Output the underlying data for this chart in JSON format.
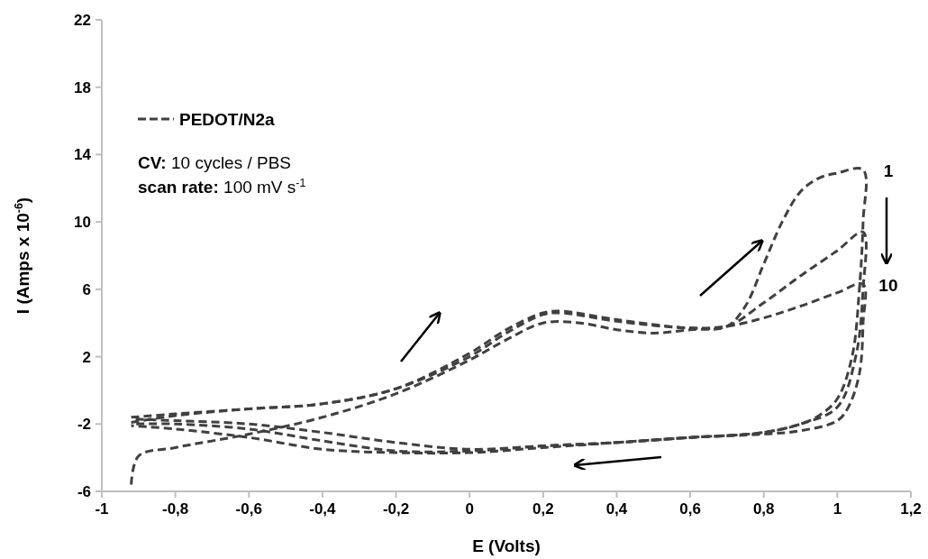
{
  "chart_data": {
    "type": "line",
    "xlabel": "E (Volts)",
    "ylabel": "I (Amps x 10$^{-6}$)",
    "xlim": [
      -1,
      1.2
    ],
    "xticks": [
      -1,
      {
        "value": -0.8,
        "label": "-0,8"
      },
      {
        "value": -0.6,
        "label": "-0,6"
      },
      {
        "value": -0.4,
        "label": "-0,4"
      },
      {
        "value": -0.2,
        "label": "-0,2"
      },
      0,
      {
        "value": 0.2,
        "label": "0,2"
      },
      {
        "value": 0.4,
        "label": "0,4"
      },
      {
        "value": 0.6,
        "label": "0,6"
      },
      {
        "value": 0.8,
        "label": "0,8"
      },
      1,
      {
        "value": 1.2,
        "label": "1,2"
      }
    ],
    "ylim": [
      -6,
      22
    ],
    "yticks": [
      -6,
      -2,
      2,
      6,
      10,
      14,
      18,
      22
    ],
    "grid": false,
    "legend": "top left",
    "line_style": "dashed",
    "marker": "none",
    "series": [
      {
        "name": "PEDOT/N2a",
        "color": "#404040",
        "x": [
          -0.92,
          -0.9,
          -0.8,
          -0.6,
          -0.4,
          -0.2,
          0,
          0.1,
          0.2,
          0.3,
          0.4,
          0.5,
          0.6,
          0.7,
          0.75,
          0.8,
          0.85,
          0.9,
          0.95,
          1.0,
          1.07,
          1.07,
          1.06,
          1.04,
          1.0,
          0.95,
          0.9,
          0.8,
          0.6,
          0.4,
          0.2,
          0,
          -0.2,
          -0.4,
          -0.6,
          -0.8,
          -0.92
        ],
        "values": [
          -5.6,
          -3.9,
          -3.4,
          -2.6,
          -1.6,
          -0.2,
          1.8,
          3.0,
          4.0,
          4.0,
          3.6,
          3.4,
          3.6,
          3.8,
          5,
          7.5,
          10,
          11.8,
          12.6,
          12.9,
          13.1,
          10,
          6,
          2,
          -0.5,
          -1.5,
          -2.0,
          -2.5,
          -2.8,
          -3.1,
          -3.4,
          -3.7,
          -3.7,
          -3.5,
          -2.8,
          -2.3,
          -2.1
        ]
      },
      {
        "color": "#404040",
        "x": [
          -0.92,
          -0.8,
          -0.6,
          -0.4,
          -0.2,
          0,
          0.1,
          0.2,
          0.25,
          0.4,
          0.6,
          0.7,
          0.8,
          0.9,
          1.0,
          1.07,
          1.07,
          1.05,
          1.0,
          0.9,
          0.8,
          0.6,
          0.4,
          0.2,
          0,
          -0.2,
          -0.4,
          -0.6,
          -0.8,
          -0.92
        ],
        "values": [
          -1.9,
          -1.5,
          -1.1,
          -0.8,
          0.1,
          2.0,
          3.4,
          4.5,
          4.6,
          4.1,
          3.7,
          3.8,
          5.2,
          6.8,
          8.3,
          9.4,
          6,
          2,
          -1,
          -2.0,
          -2.5,
          -2.8,
          -3.1,
          -3.3,
          -3.6,
          -3.6,
          -3.0,
          -2.3,
          -2.0,
          -2.0
        ]
      },
      {
        "color": "#404040",
        "x": [
          -0.92,
          -0.8,
          -0.6,
          -0.4,
          -0.2,
          0,
          0.1,
          0.2,
          0.25,
          0.4,
          0.6,
          0.7,
          0.8,
          0.9,
          1.0,
          1.07,
          1.07,
          1.06,
          1.03,
          1.0,
          0.9,
          0.8,
          0.6,
          0.4,
          0.2,
          0,
          -0.2,
          -0.4,
          -0.6,
          -0.8,
          -0.92
        ],
        "values": [
          -1.6,
          -1.4,
          -1.1,
          -0.8,
          0.1,
          2.2,
          3.6,
          4.6,
          4.7,
          4.2,
          3.7,
          3.8,
          4.3,
          5.0,
          5.8,
          6.3,
          4,
          1,
          -1,
          -1.8,
          -2.4,
          -2.6,
          -2.8,
          -3.1,
          -3.3,
          -3.5,
          -3.1,
          -2.5,
          -2.0,
          -1.8,
          -1.7
        ]
      }
    ],
    "annotations": [
      "CV: 10 cycles / PBS",
      "scan rate: 100 mV s$^{-1}$",
      {
        "text": "1",
        "x": 1.07,
        "y": 13.1
      },
      {
        "text": "10",
        "x": 1.07,
        "y": 6.3
      }
    ]
  }
}
